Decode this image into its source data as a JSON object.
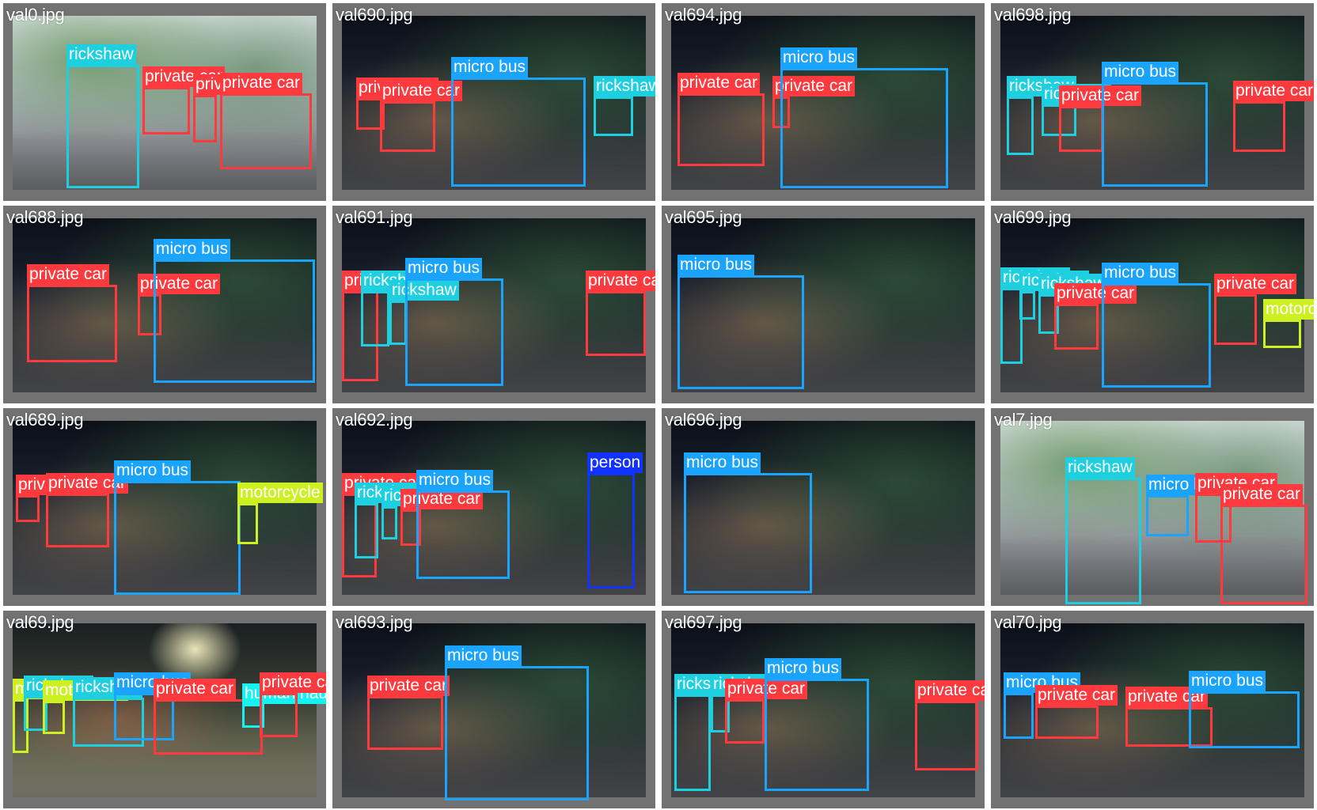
{
  "colors": {
    "private car": "#ff3a3f",
    "micro bus": "#1aa3ff",
    "rickshaw": "#1ecfe0",
    "motorcycle": "#cdf023",
    "person": "#1233ff",
    "human hauler": "#14f2f2"
  },
  "label_text_colors": {
    "private car": "#ffffff",
    "micro bus": "#ffffff",
    "rickshaw": "#ffffff",
    "motorcycle": "#ffffff",
    "person": "#ffffff",
    "human hauler": "#ffffff"
  },
  "tiles": [
    {
      "filename": "val0.jpg",
      "scene": "day"
    },
    {
      "filename": "val690.jpg",
      "scene": "night"
    },
    {
      "filename": "val694.jpg",
      "scene": "night"
    },
    {
      "filename": "val698.jpg",
      "scene": "night"
    },
    {
      "filename": "val688.jpg",
      "scene": "night"
    },
    {
      "filename": "val691.jpg",
      "scene": "night"
    },
    {
      "filename": "val695.jpg",
      "scene": "night"
    },
    {
      "filename": "val699.jpg",
      "scene": "night"
    },
    {
      "filename": "val689.jpg",
      "scene": "night"
    },
    {
      "filename": "val692.jpg",
      "scene": "night"
    },
    {
      "filename": "val696.jpg",
      "scene": "night"
    },
    {
      "filename": "val7.jpg",
      "scene": "day"
    },
    {
      "filename": "val69.jpg",
      "scene": "lit"
    },
    {
      "filename": "val693.jpg",
      "scene": "night"
    },
    {
      "filename": "val697.jpg",
      "scene": "night"
    },
    {
      "filename": "val70.jpg",
      "scene": "night"
    }
  ]
}
